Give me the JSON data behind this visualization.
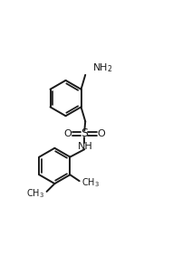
{
  "background_color": "#ffffff",
  "line_color": "#1a1a1a",
  "line_width": 1.4,
  "font_size": 7.5,
  "fig_width": 1.9,
  "fig_height": 2.92,
  "dpi": 100,
  "xlim": [
    0.0,
    1.0
  ],
  "ylim": [
    0.0,
    1.0
  ]
}
